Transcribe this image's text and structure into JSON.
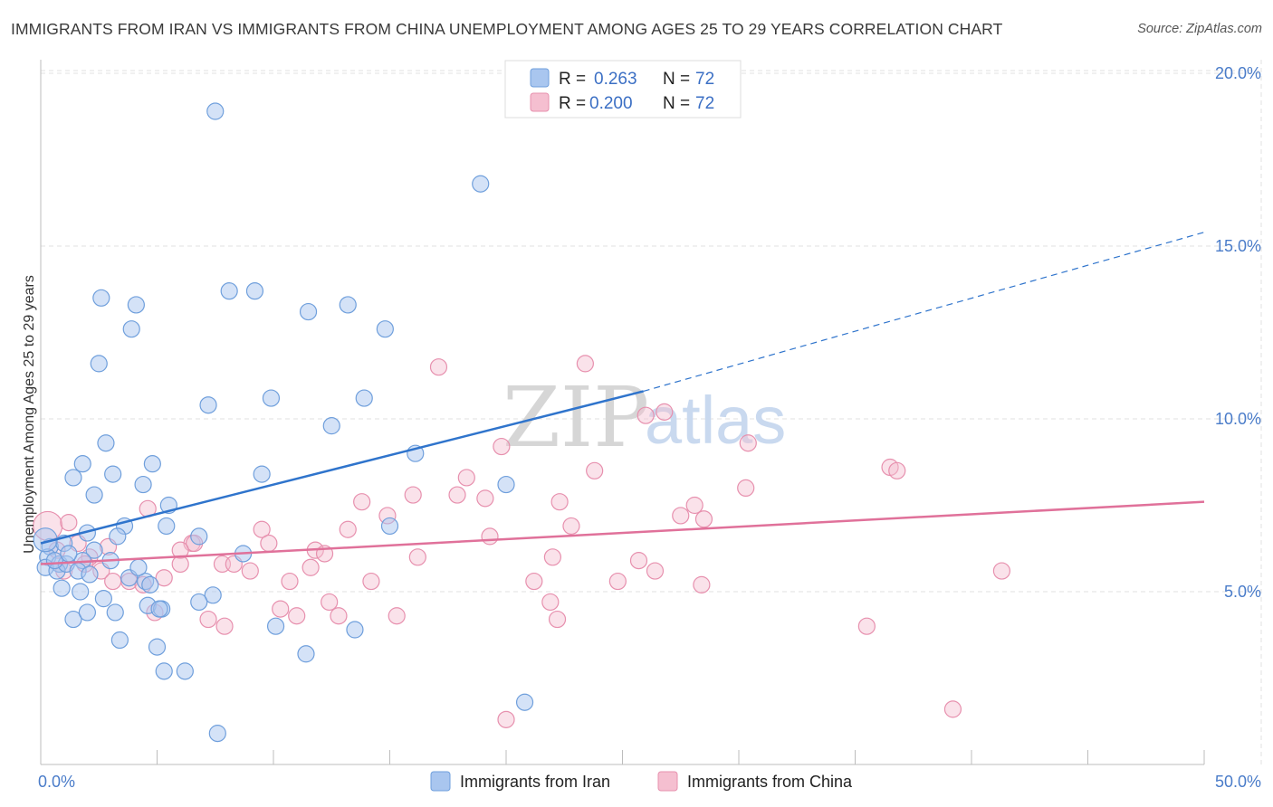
{
  "title": "IMMIGRANTS FROM IRAN VS IMMIGRANTS FROM CHINA UNEMPLOYMENT AMONG AGES 25 TO 29 YEARS CORRELATION CHART",
  "source": "Source: ZipAtlas.com",
  "watermark": {
    "zip": "ZIP",
    "atlas": "atlas"
  },
  "colors": {
    "iran_fill": "#a9c6ef",
    "iran_stroke": "#6f9fdc",
    "iran_line": "#2f74cc",
    "china_fill": "#f5bfd0",
    "china_stroke": "#e790ae",
    "china_line": "#e0719a",
    "grid": "#e2e2e2",
    "axis_text": "#4a7cc9"
  },
  "legend": {
    "rows": [
      {
        "r_label": "R =",
        "r_value": "0.263",
        "n_label": "N =",
        "n_value": "72"
      },
      {
        "r_label": "R =",
        "r_value": "0.200",
        "n_label": "N =",
        "n_value": "72"
      }
    ]
  },
  "chart_data": {
    "type": "scatter",
    "title": "IMMIGRANTS FROM IRAN VS IMMIGRANTS FROM CHINA UNEMPLOYMENT AMONG AGES 25 TO 29 YEARS CORRELATION CHART",
    "xlabel": "",
    "ylabel": "Unemployment Among Ages 25 to 29 years",
    "xlim": [
      0,
      50
    ],
    "ylim": [
      0,
      20.5
    ],
    "x_tick_labels": [
      "0.0%",
      "50.0%"
    ],
    "y_ticks": [
      5,
      10,
      15,
      20
    ],
    "y_tick_labels": [
      "5.0%",
      "10.0%",
      "15.0%",
      "20.0%"
    ],
    "grid": true,
    "legend_position": "top-center",
    "series": [
      {
        "name": "Immigrants from Iran",
        "trend": {
          "x": [
            0,
            25.9
          ],
          "y": [
            6.4,
            10.8
          ],
          "dashed_to": [
            50,
            15.4
          ]
        },
        "points": [
          [
            7.5,
            18.9
          ],
          [
            18.9,
            16.8
          ],
          [
            2.6,
            13.5
          ],
          [
            8.1,
            13.7
          ],
          [
            9.2,
            13.7
          ],
          [
            4.1,
            13.3
          ],
          [
            11.5,
            13.1
          ],
          [
            13.2,
            13.3
          ],
          [
            3.9,
            12.6
          ],
          [
            14.8,
            12.6
          ],
          [
            2.5,
            11.6
          ],
          [
            7.2,
            10.4
          ],
          [
            9.9,
            10.6
          ],
          [
            13.9,
            10.6
          ],
          [
            12.5,
            9.8
          ],
          [
            2.8,
            9.3
          ],
          [
            16.1,
            9.0
          ],
          [
            1.8,
            8.7
          ],
          [
            4.8,
            8.7
          ],
          [
            1.4,
            8.3
          ],
          [
            3.1,
            8.4
          ],
          [
            9.5,
            8.4
          ],
          [
            4.4,
            8.1
          ],
          [
            20.0,
            8.1
          ],
          [
            2.3,
            7.8
          ],
          [
            5.5,
            7.5
          ],
          [
            3.6,
            6.9
          ],
          [
            5.4,
            6.9
          ],
          [
            15.0,
            6.9
          ],
          [
            2.0,
            6.7
          ],
          [
            3.3,
            6.6
          ],
          [
            6.8,
            6.6
          ],
          [
            0.4,
            6.3
          ],
          [
            1.0,
            6.4
          ],
          [
            2.3,
            6.2
          ],
          [
            8.7,
            6.1
          ],
          [
            0.3,
            6.0
          ],
          [
            0.8,
            5.8
          ],
          [
            1.8,
            5.9
          ],
          [
            3.0,
            5.9
          ],
          [
            0.2,
            5.7
          ],
          [
            0.7,
            5.6
          ],
          [
            1.1,
            5.8
          ],
          [
            1.6,
            5.6
          ],
          [
            2.1,
            5.5
          ],
          [
            3.8,
            5.4
          ],
          [
            4.5,
            5.3
          ],
          [
            4.7,
            5.2
          ],
          [
            0.9,
            5.1
          ],
          [
            1.7,
            5.0
          ],
          [
            2.7,
            4.8
          ],
          [
            7.4,
            4.9
          ],
          [
            4.6,
            4.6
          ],
          [
            5.2,
            4.5
          ],
          [
            6.8,
            4.7
          ],
          [
            1.4,
            4.2
          ],
          [
            2.0,
            4.4
          ],
          [
            3.2,
            4.4
          ],
          [
            5.1,
            4.5
          ],
          [
            10.1,
            4.0
          ],
          [
            13.5,
            3.9
          ],
          [
            3.4,
            3.6
          ],
          [
            5.0,
            3.4
          ],
          [
            11.4,
            3.2
          ],
          [
            5.3,
            2.7
          ],
          [
            6.2,
            2.7
          ],
          [
            20.8,
            1.8
          ],
          [
            7.6,
            0.9
          ],
          [
            0.2,
            6.5
          ],
          [
            0.6,
            5.9
          ],
          [
            1.2,
            6.1
          ],
          [
            4.2,
            5.7
          ]
        ]
      },
      {
        "name": "Immigrants from China",
        "trend": {
          "x": [
            0,
            50
          ],
          "y": [
            5.8,
            7.6
          ]
        },
        "points": [
          [
            0.3,
            6.9
          ],
          [
            1.2,
            7.0
          ],
          [
            0.7,
            6.2
          ],
          [
            1.6,
            6.4
          ],
          [
            2.1,
            6.0
          ],
          [
            2.9,
            6.3
          ],
          [
            4.6,
            7.4
          ],
          [
            6.5,
            6.4
          ],
          [
            6.6,
            6.4
          ],
          [
            6.0,
            6.2
          ],
          [
            9.5,
            6.8
          ],
          [
            9.8,
            6.4
          ],
          [
            11.8,
            6.2
          ],
          [
            13.8,
            7.6
          ],
          [
            13.2,
            6.8
          ],
          [
            14.9,
            7.2
          ],
          [
            16.0,
            7.8
          ],
          [
            17.1,
            11.5
          ],
          [
            17.9,
            7.8
          ],
          [
            18.3,
            8.3
          ],
          [
            19.1,
            7.7
          ],
          [
            19.3,
            6.6
          ],
          [
            19.8,
            9.2
          ],
          [
            22.3,
            7.6
          ],
          [
            22.8,
            6.9
          ],
          [
            22.0,
            6.0
          ],
          [
            23.4,
            11.6
          ],
          [
            23.8,
            8.5
          ],
          [
            25.7,
            5.9
          ],
          [
            26.0,
            10.1
          ],
          [
            26.8,
            10.2
          ],
          [
            27.5,
            7.2
          ],
          [
            28.1,
            7.5
          ],
          [
            28.5,
            7.1
          ],
          [
            28.4,
            5.2
          ],
          [
            30.3,
            8.0
          ],
          [
            30.4,
            9.3
          ],
          [
            36.5,
            8.6
          ],
          [
            36.8,
            8.5
          ],
          [
            41.3,
            5.6
          ],
          [
            1.0,
            5.6
          ],
          [
            1.9,
            5.8
          ],
          [
            2.6,
            5.6
          ],
          [
            3.1,
            5.3
          ],
          [
            3.8,
            5.3
          ],
          [
            4.4,
            5.2
          ],
          [
            5.3,
            5.4
          ],
          [
            6.0,
            5.8
          ],
          [
            7.8,
            5.8
          ],
          [
            8.3,
            5.8
          ],
          [
            9.0,
            5.6
          ],
          [
            10.7,
            5.3
          ],
          [
            11.6,
            5.7
          ],
          [
            12.2,
            6.1
          ],
          [
            14.2,
            5.3
          ],
          [
            16.2,
            6.0
          ],
          [
            21.2,
            5.3
          ],
          [
            24.8,
            5.3
          ],
          [
            26.4,
            5.6
          ],
          [
            4.9,
            4.4
          ],
          [
            7.2,
            4.2
          ],
          [
            7.9,
            4.0
          ],
          [
            10.3,
            4.5
          ],
          [
            11.0,
            4.3
          ],
          [
            12.4,
            4.7
          ],
          [
            12.8,
            4.3
          ],
          [
            15.3,
            4.3
          ],
          [
            21.9,
            4.7
          ],
          [
            22.2,
            4.2
          ],
          [
            35.5,
            4.0
          ],
          [
            39.2,
            1.6
          ],
          [
            20.0,
            1.3
          ]
        ]
      }
    ]
  }
}
